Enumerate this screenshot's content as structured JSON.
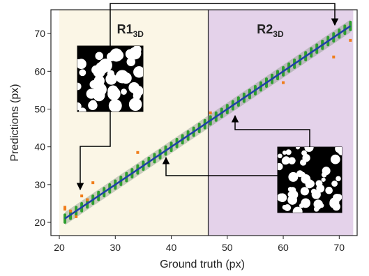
{
  "chart_data": {
    "type": "scatter",
    "xlabel": "Ground truth (px)",
    "ylabel": "Predictions (px)",
    "xlim": [
      18.5,
      73.2
    ],
    "ylim": [
      16.5,
      76.3
    ],
    "xticks": [
      20,
      30,
      40,
      50,
      60,
      70
    ],
    "yticks": [
      20,
      30,
      40,
      50,
      60,
      70
    ],
    "regions": [
      {
        "label": "R1",
        "subscript": "3D",
        "range": [
          20,
          46.6
        ],
        "color": "#fbf6e6"
      },
      {
        "label": "R2",
        "subscript": "3D",
        "range": [
          46.6,
          72.5
        ],
        "color": "#e4d2ea"
      }
    ],
    "ranges": {
      "color": "#2e9e2e",
      "x": [
        21,
        22,
        23,
        24,
        25,
        26,
        27,
        28,
        29,
        30,
        31,
        32,
        33,
        34,
        35,
        36,
        37,
        38,
        39,
        40,
        41,
        42,
        43,
        44,
        45,
        46,
        47,
        48,
        49,
        50,
        51,
        52,
        53,
        54,
        55,
        56,
        57,
        58,
        59,
        60,
        61,
        62,
        63,
        64,
        65,
        66,
        67,
        68,
        69,
        70,
        71,
        72
      ],
      "low": [
        20,
        21,
        22,
        23,
        24,
        25,
        26,
        27,
        28,
        29,
        30,
        31,
        32,
        33,
        34,
        35,
        36,
        37,
        38,
        39,
        40,
        41,
        42,
        43,
        44,
        45,
        46,
        47,
        48,
        49,
        50,
        51,
        52,
        53,
        54,
        55,
        56,
        57,
        58,
        59,
        60,
        61,
        62,
        63,
        64,
        65,
        66,
        67,
        68,
        69,
        70,
        71
      ],
      "high": [
        22,
        23,
        24,
        25,
        26,
        27,
        28,
        29,
        30,
        31,
        32,
        33,
        34,
        35,
        36,
        37,
        38,
        39,
        40,
        41,
        42,
        43,
        44,
        45,
        46,
        47,
        48,
        49,
        50,
        51,
        52,
        53,
        54,
        55,
        56,
        57,
        58,
        59,
        60,
        61,
        62,
        63,
        64,
        65,
        66,
        67,
        68,
        69,
        70,
        71,
        72,
        73
      ]
    },
    "outliers": {
      "color": "#f07d1a",
      "x": [
        21,
        21,
        22,
        23,
        24,
        25,
        26,
        34,
        47,
        60,
        69,
        72
      ],
      "y": [
        23.5,
        24,
        23,
        21.5,
        27,
        26,
        30.5,
        38.5,
        49,
        57,
        63.8,
        68.2
      ]
    },
    "fit": {
      "color": "#1f3fa8",
      "band_color": "#8a9a8a",
      "x": [
        21,
        72
      ],
      "y": [
        21,
        72
      ],
      "band_low": [
        19.3,
        70.3
      ],
      "band_high": [
        22.7,
        73.7
      ]
    }
  }
}
